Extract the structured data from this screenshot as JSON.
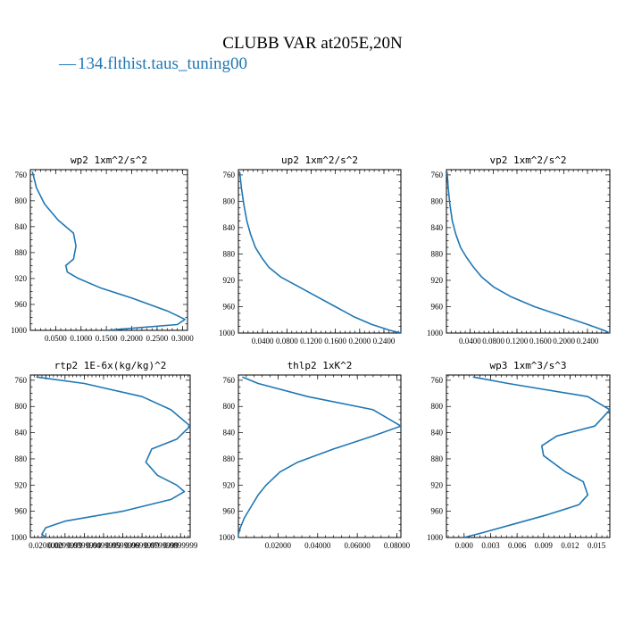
{
  "figure": {
    "title": "CLUBB VAR at205E,20N",
    "legend": {
      "dash": "—",
      "label": "134.flthist.taus_tuning00"
    },
    "line_color": "#1f77b4"
  },
  "chart_data": [
    {
      "type": "line",
      "title": "wp2  1xm^2/s^2",
      "xlim": [
        0.0,
        0.31
      ],
      "ylim": [
        1000,
        752
      ],
      "x_ticks": [
        0.05,
        0.1,
        0.15,
        0.2,
        0.25,
        0.3
      ],
      "x_tick_labels": [
        "0.0500",
        "0.1000",
        "0.1500",
        "0.2000",
        "0.2500",
        "0.3000"
      ],
      "y_ticks": [
        760,
        800,
        840,
        880,
        920,
        960,
        1000
      ],
      "y_tick_labels": [
        "760",
        "800",
        "840",
        "880",
        "920",
        "960",
        "1000"
      ],
      "series": [
        {
          "x": [
            0.004,
            0.012,
            0.028,
            0.055,
            0.085,
            0.09,
            0.085,
            0.07,
            0.073,
            0.095,
            0.14,
            0.2,
            0.27,
            0.305,
            0.29,
            0.15
          ],
          "y": [
            755,
            780,
            805,
            830,
            850,
            870,
            890,
            900,
            910,
            920,
            935,
            950,
            970,
            983,
            991,
            1000
          ]
        }
      ]
    },
    {
      "type": "line",
      "title": "up2  1xm^2/s^2",
      "xlim": [
        0.0,
        0.268
      ],
      "ylim": [
        1000,
        752
      ],
      "x_ticks": [
        0.04,
        0.08,
        0.12,
        0.16,
        0.2,
        0.24
      ],
      "x_tick_labels": [
        "0.0400",
        "0.0800",
        "0.1200",
        "0.1600",
        "0.2000",
        "0.2400"
      ],
      "y_ticks": [
        760,
        800,
        840,
        880,
        920,
        960,
        1000
      ],
      "y_tick_labels": [
        "760",
        "800",
        "840",
        "880",
        "920",
        "960",
        "1000"
      ],
      "series": [
        {
          "x": [
            0.002,
            0.005,
            0.009,
            0.014,
            0.02,
            0.028,
            0.038,
            0.05,
            0.07,
            0.1,
            0.13,
            0.16,
            0.19,
            0.22,
            0.25,
            0.268
          ],
          "y": [
            755,
            780,
            805,
            830,
            850,
            870,
            885,
            900,
            915,
            930,
            945,
            960,
            975,
            987,
            996,
            1000
          ]
        }
      ]
    },
    {
      "type": "line",
      "title": "vp2  1xm^2/s^2",
      "xlim": [
        0.0,
        0.278
      ],
      "ylim": [
        1000,
        752
      ],
      "x_ticks": [
        0.04,
        0.08,
        0.12,
        0.16,
        0.2,
        0.24
      ],
      "x_tick_labels": [
        "0.0400",
        "0.0800",
        "0.1200",
        "0.1600",
        "0.2000",
        "0.2400"
      ],
      "y_ticks": [
        760,
        800,
        840,
        880,
        920,
        960,
        1000
      ],
      "y_tick_labels": [
        "760",
        "800",
        "840",
        "880",
        "920",
        "960",
        "1000"
      ],
      "series": [
        {
          "x": [
            0.001,
            0.003,
            0.006,
            0.01,
            0.016,
            0.024,
            0.034,
            0.046,
            0.06,
            0.08,
            0.11,
            0.15,
            0.2,
            0.24,
            0.268,
            0.278
          ],
          "y": [
            755,
            780,
            805,
            830,
            850,
            870,
            885,
            900,
            915,
            930,
            945,
            960,
            975,
            987,
            996,
            1000
          ]
        }
      ]
    },
    {
      "type": "line",
      "title": "rtp2  1E-6x(kg/kg)^2",
      "xlim": [
        0.012,
        0.095
      ],
      "ylim": [
        1000,
        752
      ],
      "x_ticks": [
        0.02,
        0.03,
        0.04,
        0.05,
        0.06,
        0.07,
        0.08,
        0.09
      ],
      "x_tick_labels": [
        "0.0200000",
        "0.0299999",
        "0.0399999",
        "0.0499999",
        "0.0599999",
        "0.0699999",
        "0.0799999",
        "0.0899999"
      ],
      "y_ticks": [
        760,
        800,
        840,
        880,
        920,
        960,
        1000
      ],
      "y_tick_labels": [
        "760",
        "800",
        "840",
        "880",
        "920",
        "960",
        "1000"
      ],
      "series": [
        {
          "x": [
            0.015,
            0.04,
            0.07,
            0.085,
            0.095,
            0.088,
            0.075,
            0.072,
            0.078,
            0.088,
            0.092,
            0.085,
            0.06,
            0.03,
            0.02,
            0.018,
            0.02
          ],
          "y": [
            755,
            765,
            785,
            805,
            830,
            850,
            865,
            885,
            905,
            920,
            930,
            942,
            960,
            975,
            985,
            995,
            1000
          ]
        }
      ]
    },
    {
      "type": "line",
      "title": "thlp2  1xK^2",
      "xlim": [
        0.0,
        0.082
      ],
      "ylim": [
        1000,
        752
      ],
      "x_ticks": [
        0.02,
        0.04,
        0.06,
        0.08
      ],
      "x_tick_labels": [
        "0.02000",
        "0.04000",
        "0.06000",
        "0.08000"
      ],
      "y_ticks": [
        760,
        800,
        840,
        880,
        920,
        960,
        1000
      ],
      "y_tick_labels": [
        "760",
        "800",
        "840",
        "880",
        "920",
        "960",
        "1000"
      ],
      "series": [
        {
          "x": [
            0.002,
            0.01,
            0.035,
            0.068,
            0.082,
            0.068,
            0.048,
            0.03,
            0.021,
            0.014,
            0.01,
            0.006,
            0.003,
            0.001,
            0.0,
            0.0
          ],
          "y": [
            755,
            765,
            785,
            805,
            830,
            845,
            865,
            885,
            900,
            920,
            935,
            955,
            970,
            985,
            995,
            1000
          ]
        }
      ]
    },
    {
      "type": "line",
      "title": "wp3  1xm^3/s^3",
      "xlim": [
        -0.002,
        0.0165
      ],
      "ylim": [
        1000,
        752
      ],
      "x_ticks": [
        0.0,
        0.003,
        0.006,
        0.009,
        0.012,
        0.015
      ],
      "x_tick_labels": [
        "0.000",
        "0.003",
        "0.006",
        "0.009",
        "0.012",
        "0.015"
      ],
      "y_ticks": [
        760,
        800,
        840,
        880,
        920,
        960,
        1000
      ],
      "y_tick_labels": [
        "760",
        "800",
        "840",
        "880",
        "920",
        "960",
        "1000"
      ],
      "series": [
        {
          "x": [
            0.001,
            0.005,
            0.014,
            0.0165,
            0.0148,
            0.0105,
            0.0088,
            0.009,
            0.0115,
            0.0135,
            0.014,
            0.013,
            0.0095,
            0.0055,
            0.002,
            0.0
          ],
          "y": [
            755,
            765,
            785,
            805,
            830,
            845,
            860,
            875,
            900,
            915,
            935,
            950,
            965,
            980,
            993,
            1000
          ]
        }
      ]
    }
  ]
}
